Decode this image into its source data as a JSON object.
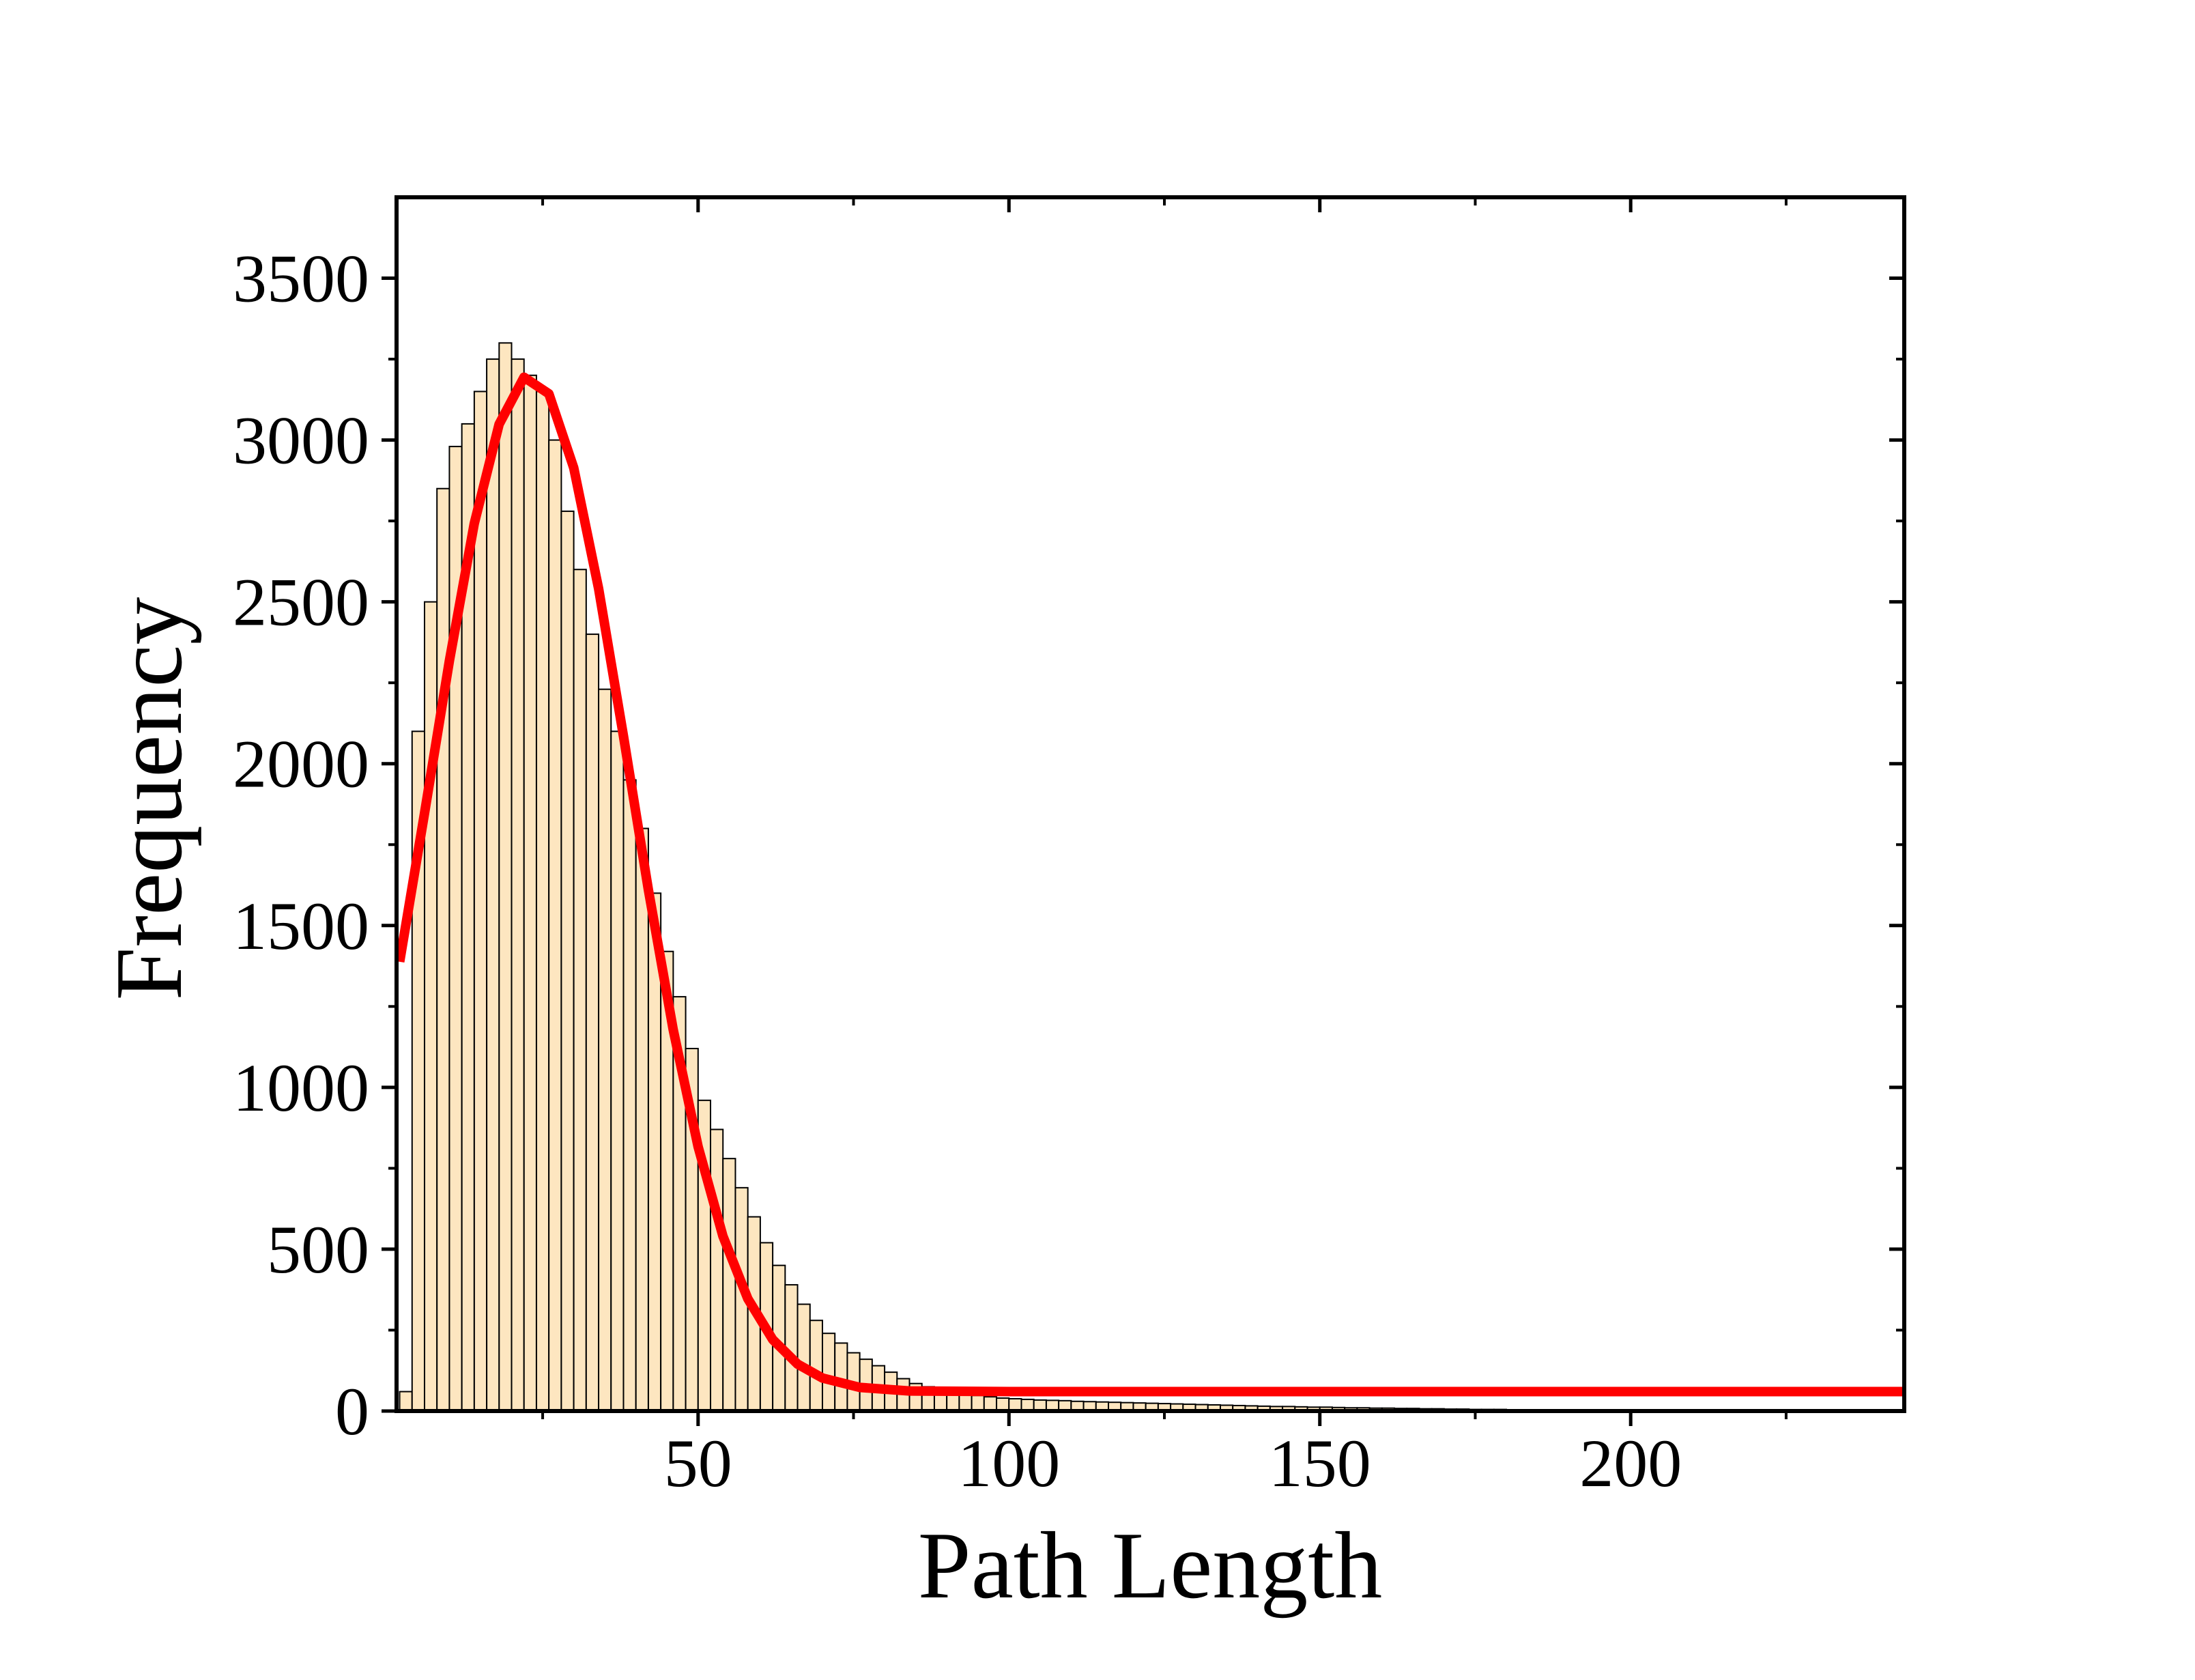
{
  "chart_data": {
    "type": "histogram",
    "x_label": "Path Length",
    "y_label": "Frequency",
    "bins": [
      2,
      4,
      6,
      8,
      10,
      12,
      14,
      16,
      18,
      20,
      22,
      24,
      26,
      28,
      30,
      32,
      34,
      36,
      38,
      40,
      42,
      44,
      46,
      48,
      50,
      52,
      54,
      56,
      58,
      60,
      62,
      64,
      66,
      68,
      70,
      72,
      74,
      76,
      78,
      80,
      82,
      84,
      86,
      88,
      90,
      92,
      94,
      96,
      98,
      100,
      102,
      104,
      106,
      108,
      110,
      112,
      114,
      116,
      118,
      120,
      122,
      124,
      126,
      128,
      130,
      132,
      134,
      136,
      138,
      140,
      142,
      144,
      146,
      148,
      150,
      152,
      154,
      156,
      158,
      160,
      162,
      164,
      166,
      168,
      170,
      172,
      174,
      176,
      178,
      180,
      182,
      184,
      186,
      188,
      190,
      192,
      194,
      196,
      198,
      200,
      202,
      204,
      206,
      208,
      210,
      212,
      214,
      216,
      218,
      220,
      222,
      224,
      226,
      228,
      230,
      232,
      234,
      236,
      238,
      240,
      242,
      244
    ],
    "values": [
      60,
      2100,
      2500,
      2850,
      2980,
      3050,
      3150,
      3250,
      3300,
      3250,
      3200,
      3150,
      3000,
      2780,
      2600,
      2400,
      2230,
      2100,
      1950,
      1800,
      1600,
      1420,
      1280,
      1120,
      960,
      870,
      780,
      690,
      600,
      520,
      450,
      390,
      330,
      280,
      240,
      210,
      180,
      160,
      140,
      120,
      100,
      85,
      75,
      65,
      58,
      52,
      48,
      44,
      40,
      38,
      36,
      34,
      33,
      32,
      30,
      29,
      28,
      27,
      26,
      25,
      24,
      23,
      22,
      21,
      20,
      19,
      18,
      17,
      16,
      15,
      14,
      14,
      13,
      12,
      12,
      11,
      10,
      10,
      9,
      9,
      8,
      8,
      7,
      7,
      6,
      6,
      5,
      5,
      5,
      4,
      4,
      4,
      3,
      3,
      3,
      3,
      2,
      2,
      2,
      2,
      2,
      1,
      1,
      1,
      1,
      1,
      1,
      1,
      1,
      1,
      1,
      0,
      0,
      0,
      0,
      0,
      0,
      0,
      0,
      0,
      0
    ],
    "color": "#fde6c0",
    "curve": {
      "color": "#ff0000",
      "x": [
        2,
        6,
        10,
        14,
        18,
        22,
        26,
        30,
        34,
        38,
        42,
        46,
        50,
        54,
        58,
        62,
        66,
        70,
        76,
        84,
        100,
        150,
        200,
        244
      ],
      "values": [
        1388,
        1847,
        2318,
        2742,
        3049,
        3194,
        3143,
        2914,
        2541,
        2085,
        1611,
        1178,
        817,
        540,
        347,
        221,
        145,
        102,
        73,
        62,
        60,
        60,
        60,
        60
      ]
    },
    "xlim": [
      1.5,
      244
    ],
    "xticks": [
      50,
      100,
      150,
      200
    ],
    "ylim": [
      0,
      3750
    ],
    "yticks": [
      0,
      500,
      1000,
      1500,
      2000,
      2500,
      3000,
      3500
    ]
  }
}
